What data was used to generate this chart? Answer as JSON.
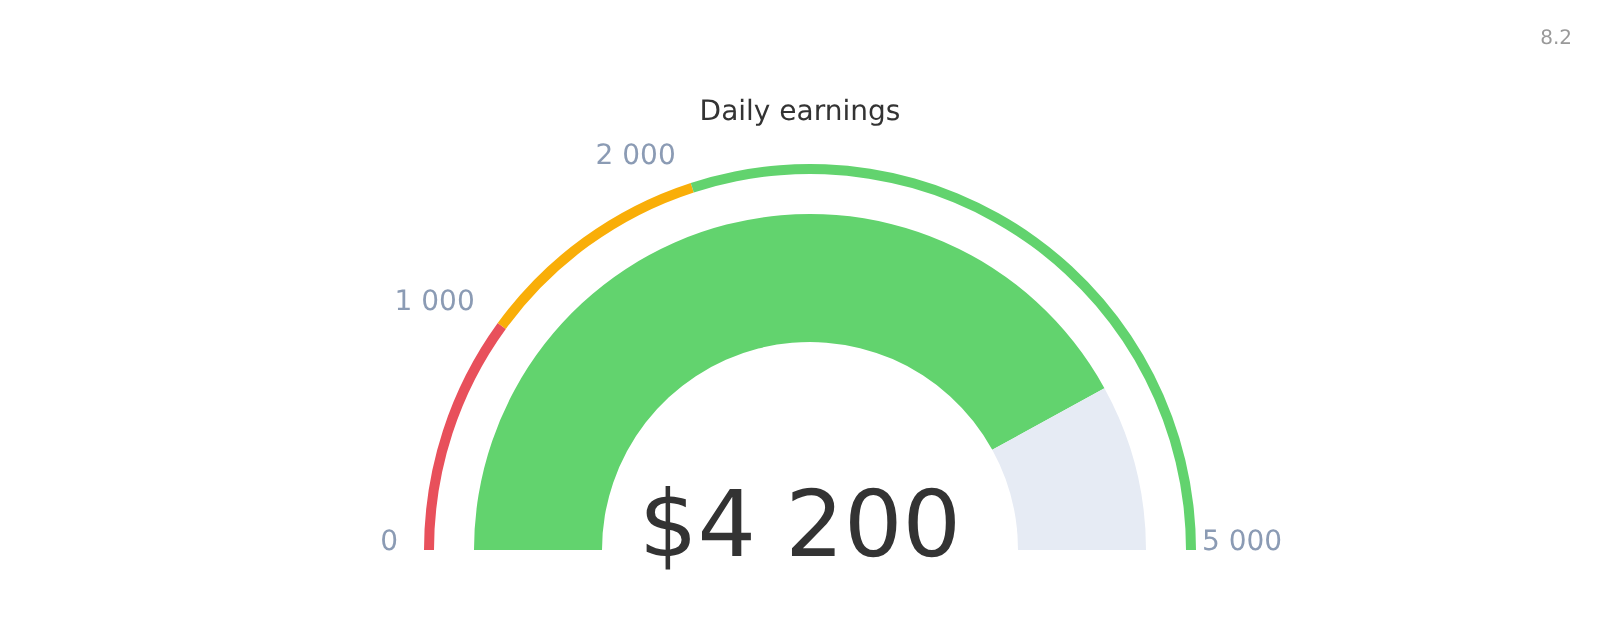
{
  "chart_data": [
    {
      "type": "donut",
      "title": "Daily earnings",
      "annotations": [
        "$4 200",
        "8.2"
      ],
      "categories": [
        null,
        null
      ],
      "values": [
        84,
        16
      ],
      "colors": [
        "#62d36e",
        "#e6ebf4"
      ]
    },
    {
      "type": "donut",
      "annotations": [
        "0",
        "1 000",
        "2 000",
        "5 000"
      ],
      "categories": [
        null,
        null,
        null
      ],
      "values": [
        20,
        20,
        60
      ],
      "colors": [
        "#e8505b",
        "#f9ae08",
        "#62d36e"
      ]
    }
  ]
}
